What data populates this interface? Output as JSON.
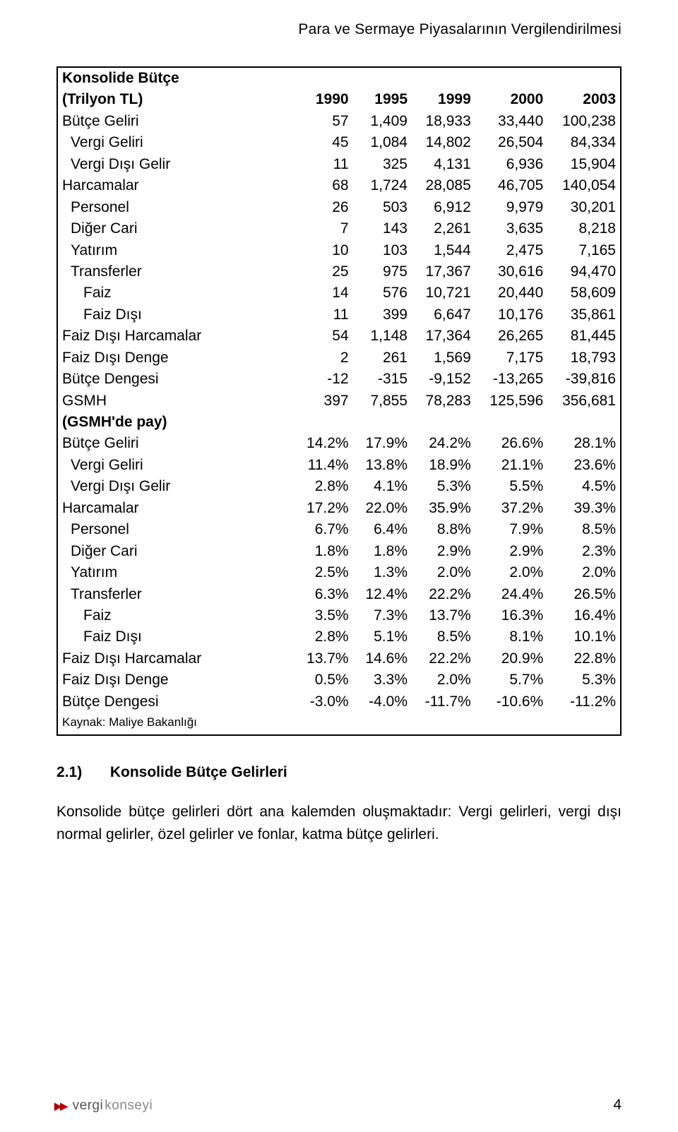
{
  "page_header": "Para ve Sermaye Piyasalarının Vergilendirilmesi",
  "table": {
    "header": {
      "label_line1": "Konsolide Bütçe",
      "label_line2": "(Trilyon TL)",
      "years": [
        "1990",
        "1995",
        "1999",
        "2000",
        "2003"
      ]
    },
    "rows": [
      {
        "label": "Bütçe Geliri",
        "indent": 0,
        "bold": false,
        "vals": [
          "57",
          "1,409",
          "18,933",
          "33,440",
          "100,238"
        ]
      },
      {
        "label": "Vergi Geliri",
        "indent": 1,
        "bold": false,
        "vals": [
          "45",
          "1,084",
          "14,802",
          "26,504",
          "84,334"
        ]
      },
      {
        "label": "Vergi Dışı Gelir",
        "indent": 1,
        "bold": false,
        "vals": [
          "11",
          "325",
          "4,131",
          "6,936",
          "15,904"
        ]
      },
      {
        "label": "Harcamalar",
        "indent": 0,
        "bold": false,
        "vals": [
          "68",
          "1,724",
          "28,085",
          "46,705",
          "140,054"
        ]
      },
      {
        "label": "Personel",
        "indent": 1,
        "bold": false,
        "vals": [
          "26",
          "503",
          "6,912",
          "9,979",
          "30,201"
        ]
      },
      {
        "label": "Diğer Cari",
        "indent": 1,
        "bold": false,
        "vals": [
          "7",
          "143",
          "2,261",
          "3,635",
          "8,218"
        ]
      },
      {
        "label": "Yatırım",
        "indent": 1,
        "bold": false,
        "vals": [
          "10",
          "103",
          "1,544",
          "2,475",
          "7,165"
        ]
      },
      {
        "label": "Transferler",
        "indent": 1,
        "bold": false,
        "vals": [
          "25",
          "975",
          "17,367",
          "30,616",
          "94,470"
        ]
      },
      {
        "label": "Faiz",
        "indent": 2,
        "bold": false,
        "vals": [
          "14",
          "576",
          "10,721",
          "20,440",
          "58,609"
        ]
      },
      {
        "label": "Faiz Dışı",
        "indent": 2,
        "bold": false,
        "vals": [
          "11",
          "399",
          "6,647",
          "10,176",
          "35,861"
        ]
      },
      {
        "label": "Faiz Dışı Harcamalar",
        "indent": 0,
        "bold": false,
        "vals": [
          "54",
          "1,148",
          "17,364",
          "26,265",
          "81,445"
        ]
      },
      {
        "label": "Faiz Dışı Denge",
        "indent": 0,
        "bold": false,
        "vals": [
          "2",
          "261",
          "1,569",
          "7,175",
          "18,793"
        ]
      },
      {
        "label": "Bütçe Dengesi",
        "indent": 0,
        "bold": false,
        "vals": [
          "-12",
          "-315",
          "-9,152",
          "-13,265",
          "-39,816"
        ]
      },
      {
        "label": "GSMH",
        "indent": 0,
        "bold": false,
        "vals": [
          "397",
          "7,855",
          "78,283",
          "125,596",
          "356,681"
        ]
      }
    ],
    "section_header": "(GSMH'de pay)",
    "pct_rows": [
      {
        "label": "Bütçe Geliri",
        "indent": 0,
        "vals": [
          "14.2%",
          "17.9%",
          "24.2%",
          "26.6%",
          "28.1%"
        ]
      },
      {
        "label": "Vergi Geliri",
        "indent": 1,
        "vals": [
          "11.4%",
          "13.8%",
          "18.9%",
          "21.1%",
          "23.6%"
        ]
      },
      {
        "label": "Vergi Dışı Gelir",
        "indent": 1,
        "vals": [
          "2.8%",
          "4.1%",
          "5.3%",
          "5.5%",
          "4.5%"
        ]
      },
      {
        "label": "Harcamalar",
        "indent": 0,
        "vals": [
          "17.2%",
          "22.0%",
          "35.9%",
          "37.2%",
          "39.3%"
        ]
      },
      {
        "label": "Personel",
        "indent": 1,
        "vals": [
          "6.7%",
          "6.4%",
          "8.8%",
          "7.9%",
          "8.5%"
        ]
      },
      {
        "label": "Diğer Cari",
        "indent": 1,
        "vals": [
          "1.8%",
          "1.8%",
          "2.9%",
          "2.9%",
          "2.3%"
        ]
      },
      {
        "label": "Yatırım",
        "indent": 1,
        "vals": [
          "2.5%",
          "1.3%",
          "2.0%",
          "2.0%",
          "2.0%"
        ]
      },
      {
        "label": "Transferler",
        "indent": 1,
        "vals": [
          "6.3%",
          "12.4%",
          "22.2%",
          "24.4%",
          "26.5%"
        ]
      },
      {
        "label": "Faiz",
        "indent": 2,
        "vals": [
          "3.5%",
          "7.3%",
          "13.7%",
          "16.3%",
          "16.4%"
        ]
      },
      {
        "label": "Faiz Dışı",
        "indent": 2,
        "vals": [
          "2.8%",
          "5.1%",
          "8.5%",
          "8.1%",
          "10.1%"
        ]
      },
      {
        "label": "Faiz Dışı Harcamalar",
        "indent": 0,
        "vals": [
          "13.7%",
          "14.6%",
          "22.2%",
          "20.9%",
          "22.8%"
        ]
      },
      {
        "label": "Faiz Dışı Denge",
        "indent": 0,
        "vals": [
          "0.5%",
          "3.3%",
          "2.0%",
          "5.7%",
          "5.3%"
        ]
      },
      {
        "label": "Bütçe Dengesi",
        "indent": 0,
        "vals": [
          "-3.0%",
          "-4.0%",
          "-11.7%",
          "-10.6%",
          "-11.2%"
        ]
      }
    ],
    "source": "Kaynak: Maliye Bakanlığı"
  },
  "section": {
    "number": "2.1)",
    "title": "Konsolide Bütçe Gelirleri"
  },
  "paragraph": "Konsolide bütçe gelirleri dört ana kalemden oluşmaktadır: Vergi gelirleri, vergi dışı normal gelirler, özel gelirler ve fonlar, katma bütçe gelirleri.",
  "footer": {
    "brand1": "vergi",
    "brand2": "konseyi",
    "page": "4"
  },
  "style": {
    "text_color": "#000000",
    "border_color": "#000000",
    "accent_color": "#b00000",
    "brand_gray": "#555555",
    "brand_gray2": "#888888",
    "background": "#ffffff",
    "fontsize_body_pt": 16,
    "fontsize_source_pt": 13
  }
}
